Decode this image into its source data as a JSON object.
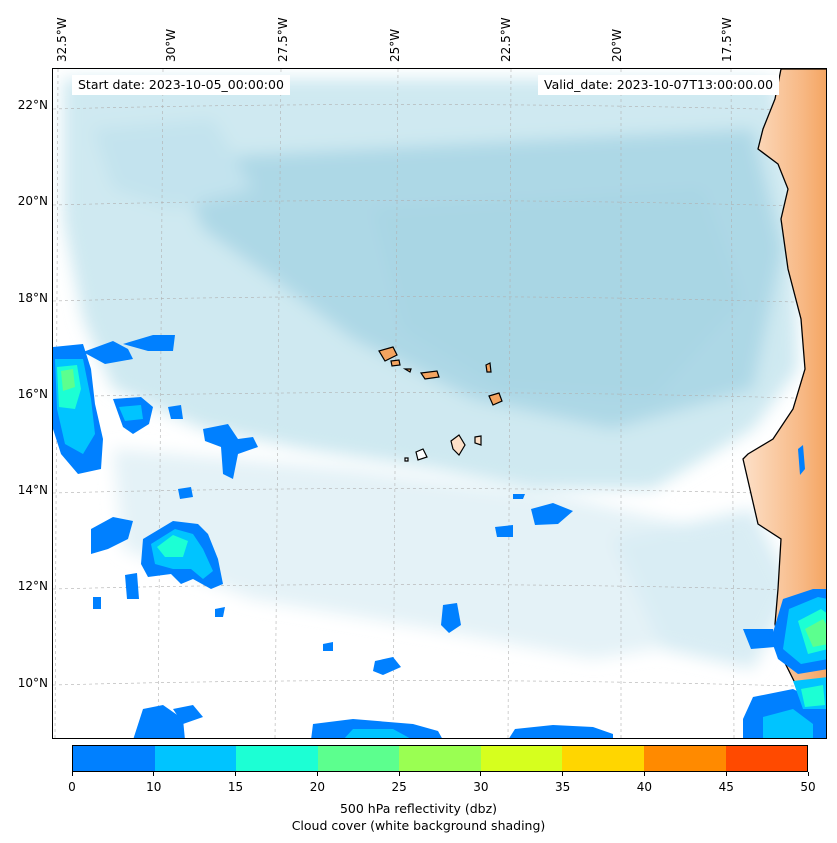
{
  "header": {
    "start_date": "Start date: 2023-10-05_00:00:00",
    "valid_date": "Valid_date: 2023-10-07T13:00:00.00"
  },
  "axes": {
    "lon_labels": [
      "32.5°W",
      "30°W",
      "27.5°W",
      "25°W",
      "22.5°W",
      "20°W",
      "17.5°W"
    ],
    "lat_labels": [
      "22°N",
      "20°N",
      "18°N",
      "16°N",
      "14°N",
      "12°N",
      "10°N"
    ]
  },
  "colorbar": {
    "ticks": [
      "0",
      "10",
      "15",
      "20",
      "25",
      "30",
      "35",
      "40",
      "45",
      "50"
    ],
    "colors": [
      "#0080ff",
      "#00c4ff",
      "#1cffd4",
      "#5cff8e",
      "#9aff52",
      "#d6ff1e",
      "#ffd600",
      "#ff8a00",
      "#ff4a00"
    ],
    "label_line1": "500 hPa reflectivity (dbz)",
    "label_line2": "Cloud cover (white background shading)"
  },
  "map_colors": {
    "cloud": "#add8e6",
    "land": "#f4a460",
    "land_light": "#fde0c8",
    "coast": "#000000",
    "grid": "#b0b0b0"
  }
}
